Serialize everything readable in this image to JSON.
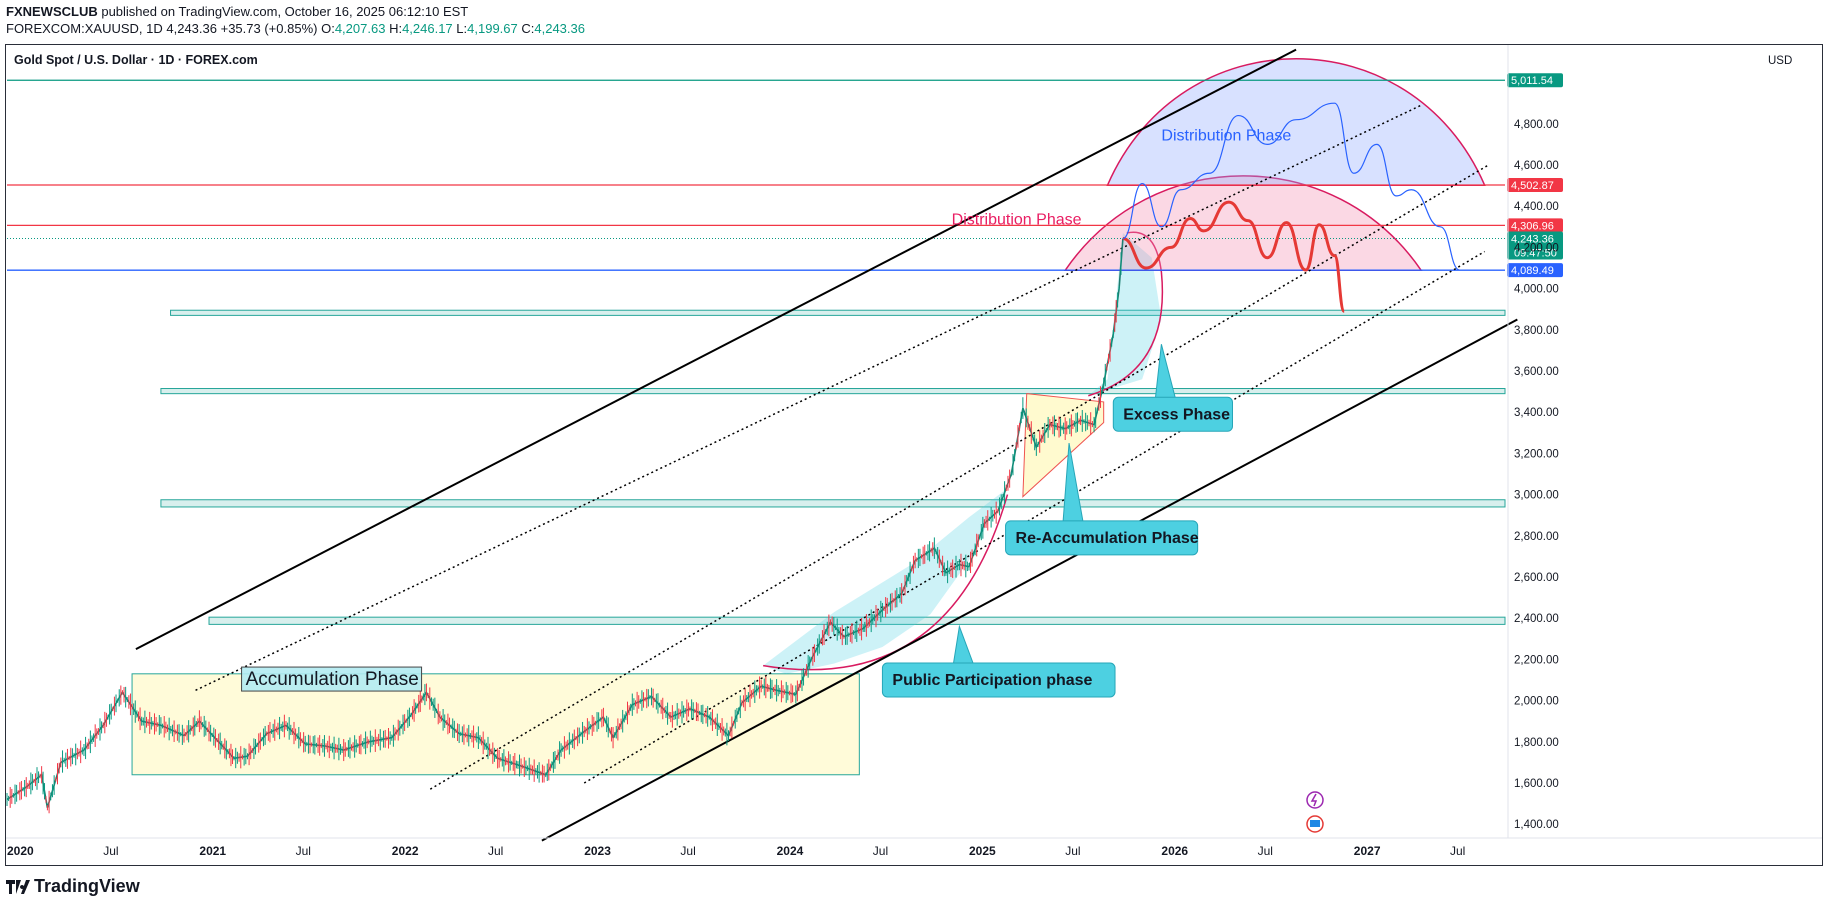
{
  "header": {
    "publisher": "FXNEWSCLUB",
    "published_text": "published on TradingView.com, October 16, 2025 06:12:10 EST",
    "symbol_line_prefix": "FOREXCOM:XAUUSD, 1D",
    "last": "4,243.36",
    "change": "+35.73 (+0.85%)",
    "open_label": "O:",
    "open": "4,207.63",
    "high_label": "H:",
    "high": "4,246.17",
    "low_label": "L:",
    "low": "4,199.67",
    "close_label": "C:",
    "close": "4,243.36"
  },
  "chart_title": "Gold Spot / U.S. Dollar · 1D · FOREX.com",
  "currency_label": "USD",
  "footer_brand": "TradingView",
  "colors": {
    "up": "#089981",
    "red_line": "#f23645",
    "blue_line": "#2962ff",
    "cyan_box": "#4dd0e1",
    "zone_green": "#26a69a"
  },
  "chart_data": {
    "type": "line",
    "title": "Gold Spot / U.S. Dollar · 1D · FOREX.com",
    "ylabel": "USD",
    "ylim": [
      1200,
      5200
    ],
    "xlim": [
      2020.0,
      2027.85
    ],
    "y_ticks": [
      1400,
      1600,
      1800,
      2000,
      2200,
      2400,
      2600,
      2800,
      3000,
      3200,
      3400,
      3600,
      3800,
      4000,
      4200,
      4400,
      4600,
      4800
    ],
    "y_tick_labels": [
      "1,400.00",
      "1,600.00",
      "1,800.00",
      "2,000.00",
      "2,200.00",
      "2,400.00",
      "2,600.00",
      "2,800.00",
      "3,000.00",
      "3,200.00",
      "3,400.00",
      "3,600.00",
      "3,800.00",
      "4,000.00",
      "4,200.00",
      "4,400.00",
      "4,600.00",
      "4,800.00"
    ],
    "x_ticks": [
      {
        "t": 2020.0,
        "label": "2020",
        "bold": true
      },
      {
        "t": 2020.5,
        "label": "Jul",
        "bold": false
      },
      {
        "t": 2021.0,
        "label": "2021",
        "bold": true
      },
      {
        "t": 2021.5,
        "label": "Jul",
        "bold": false
      },
      {
        "t": 2022.0,
        "label": "2022",
        "bold": true
      },
      {
        "t": 2022.5,
        "label": "Jul",
        "bold": false
      },
      {
        "t": 2023.0,
        "label": "2023",
        "bold": true
      },
      {
        "t": 2023.5,
        "label": "Jul",
        "bold": false
      },
      {
        "t": 2024.0,
        "label": "2024",
        "bold": true
      },
      {
        "t": 2024.5,
        "label": "Jul",
        "bold": false
      },
      {
        "t": 2025.0,
        "label": "2025",
        "bold": true
      },
      {
        "t": 2025.5,
        "label": "Jul",
        "bold": false
      },
      {
        "t": 2026.0,
        "label": "2026",
        "bold": true
      },
      {
        "t": 2026.5,
        "label": "Jul",
        "bold": false
      },
      {
        "t": 2027.0,
        "label": "2027",
        "bold": true
      },
      {
        "t": 2027.5,
        "label": "Jul",
        "bold": false
      }
    ],
    "price_series": {
      "name": "XAUUSD",
      "points": [
        [
          2020.0,
          1520
        ],
        [
          2020.1,
          1580
        ],
        [
          2020.18,
          1640
        ],
        [
          2020.21,
          1480
        ],
        [
          2020.28,
          1700
        ],
        [
          2020.4,
          1760
        ],
        [
          2020.5,
          1880
        ],
        [
          2020.6,
          2040
        ],
        [
          2020.7,
          1900
        ],
        [
          2020.8,
          1880
        ],
        [
          2020.92,
          1830
        ],
        [
          2021.0,
          1900
        ],
        [
          2021.1,
          1800
        ],
        [
          2021.18,
          1720
        ],
        [
          2021.25,
          1730
        ],
        [
          2021.35,
          1840
        ],
        [
          2021.45,
          1880
        ],
        [
          2021.55,
          1790
        ],
        [
          2021.65,
          1780
        ],
        [
          2021.75,
          1760
        ],
        [
          2021.88,
          1800
        ],
        [
          2022.0,
          1820
        ],
        [
          2022.1,
          1930
        ],
        [
          2022.18,
          2040
        ],
        [
          2022.25,
          1920
        ],
        [
          2022.35,
          1840
        ],
        [
          2022.45,
          1820
        ],
        [
          2022.55,
          1720
        ],
        [
          2022.68,
          1680
        ],
        [
          2022.8,
          1640
        ],
        [
          2022.88,
          1760
        ],
        [
          2023.0,
          1850
        ],
        [
          2023.1,
          1920
        ],
        [
          2023.15,
          1820
        ],
        [
          2023.25,
          1980
        ],
        [
          2023.35,
          2020
        ],
        [
          2023.45,
          1920
        ],
        [
          2023.55,
          1960
        ],
        [
          2023.65,
          1920
        ],
        [
          2023.75,
          1830
        ],
        [
          2023.82,
          1990
        ],
        [
          2023.92,
          2070
        ],
        [
          2024.0,
          2050
        ],
        [
          2024.1,
          2030
        ],
        [
          2024.18,
          2200
        ],
        [
          2024.28,
          2380
        ],
        [
          2024.35,
          2310
        ],
        [
          2024.45,
          2350
        ],
        [
          2024.55,
          2440
        ],
        [
          2024.65,
          2520
        ],
        [
          2024.72,
          2680
        ],
        [
          2024.82,
          2740
        ],
        [
          2024.88,
          2620
        ],
        [
          2024.95,
          2660
        ],
        [
          2025.0,
          2650
        ],
        [
          2025.08,
          2860
        ],
        [
          2025.15,
          2920
        ],
        [
          2025.22,
          3100
        ],
        [
          2025.28,
          3420
        ],
        [
          2025.35,
          3230
        ],
        [
          2025.42,
          3340
        ],
        [
          2025.5,
          3320
        ],
        [
          2025.58,
          3360
        ],
        [
          2025.65,
          3340
        ],
        [
          2025.7,
          3540
        ],
        [
          2025.75,
          3780
        ],
        [
          2025.78,
          4000
        ],
        [
          2025.8,
          4243
        ]
      ]
    },
    "projections": [
      {
        "name": "projection-red",
        "points": [
          [
            2025.8,
            4243
          ],
          [
            2025.92,
            4100
          ],
          [
            2026.05,
            4200
          ],
          [
            2026.15,
            4340
          ],
          [
            2026.22,
            4280
          ],
          [
            2026.35,
            4420
          ],
          [
            2026.45,
            4330
          ],
          [
            2026.55,
            4150
          ],
          [
            2026.65,
            4320
          ],
          [
            2026.75,
            4090
          ],
          [
            2026.82,
            4310
          ],
          [
            2026.9,
            4160
          ],
          [
            2026.95,
            3890
          ]
        ]
      },
      {
        "name": "projection-blue",
        "points": [
          [
            2025.8,
            4243
          ],
          [
            2025.9,
            4510
          ],
          [
            2026.0,
            4300
          ],
          [
            2026.1,
            4480
          ],
          [
            2026.25,
            4560
          ],
          [
            2026.4,
            4840
          ],
          [
            2026.55,
            4700
          ],
          [
            2026.7,
            4820
          ],
          [
            2026.9,
            4900
          ],
          [
            2027.0,
            4560
          ],
          [
            2027.12,
            4700
          ],
          [
            2027.22,
            4450
          ],
          [
            2027.3,
            4480
          ],
          [
            2027.45,
            4300
          ],
          [
            2027.55,
            4090
          ]
        ]
      }
    ],
    "horizontal_levels": [
      {
        "name": "level-5011",
        "value": 5011.54,
        "label": "5,011.54",
        "color": "#089981"
      },
      {
        "name": "level-4502",
        "value": 4502.87,
        "label": "4,502.87",
        "color": "#f23645"
      },
      {
        "name": "level-4306",
        "value": 4306.96,
        "label": "4,306.96",
        "color": "#f23645"
      },
      {
        "name": "level-4089",
        "value": 4089.49,
        "label": "4,089.49",
        "color": "#2962ff"
      }
    ],
    "last_price_badge": {
      "value": 4243.36,
      "label": "4,243.36",
      "countdown": "09:47:50"
    },
    "support_zones": [
      {
        "from": 2020.85,
        "to": 2027.85,
        "low": 3870,
        "high": 3895
      },
      {
        "from": 2020.8,
        "to": 2027.85,
        "low": 3490,
        "high": 3515
      },
      {
        "from": 2020.8,
        "to": 2027.85,
        "low": 2940,
        "high": 2975
      },
      {
        "from": 2021.05,
        "to": 2027.85,
        "low": 2370,
        "high": 2405
      }
    ],
    "channel_lines": [
      {
        "name": "upper-channel-line",
        "style": "solid",
        "points": [
          [
            2020.67,
            2250
          ],
          [
            2026.7,
            5160
          ]
        ]
      },
      {
        "name": "lower-channel-line",
        "style": "solid",
        "points": [
          [
            2022.78,
            1320
          ],
          [
            2027.85,
            3850
          ]
        ]
      },
      {
        "name": "dotted-line-1",
        "style": "dotted",
        "points": [
          [
            2020.98,
            2050
          ],
          [
            2027.35,
            4890
          ]
        ]
      },
      {
        "name": "dotted-line-2",
        "style": "dotted",
        "points": [
          [
            2022.2,
            1570
          ],
          [
            2027.7,
            4600
          ]
        ]
      },
      {
        "name": "dotted-line-3",
        "style": "dotted",
        "points": [
          [
            2023.0,
            1600
          ],
          [
            2027.68,
            4180
          ]
        ]
      }
    ],
    "accumulation_box": {
      "from": 2020.65,
      "to": 2024.43,
      "low": 1640,
      "high": 2130
    },
    "reaccumulation_triangle": [
      [
        2025.3,
        3490
      ],
      [
        2025.7,
        3450
      ],
      [
        2025.7,
        3350
      ],
      [
        2025.28,
        2990
      ]
    ],
    "arcs": [
      {
        "name": "public-participation-arc",
        "from": 2023.93,
        "to": 2025.15,
        "base": 2170,
        "dip": 2130,
        "type": "bowl"
      },
      {
        "name": "excess-arc",
        "from": 2025.62,
        "to": 2026.0,
        "type": "bowl"
      },
      {
        "name": "distribution-arc-red",
        "from": 2025.5,
        "to": 2027.35,
        "base": 4089,
        "peak": 4500
      },
      {
        "name": "distribution-arc-blue",
        "from": 2025.72,
        "to": 2027.68,
        "base": 4502,
        "peak": 5030
      }
    ],
    "annotations": [
      {
        "name": "accumulation-label",
        "text": "Accumulation Phase",
        "t": 2021.24,
        "y": 2090,
        "style": "plain-box"
      },
      {
        "name": "public-participation-label",
        "text": "Public Participation phase",
        "t": 2024.55,
        "y": 2100,
        "style": "callout",
        "pointer": [
          2024.95,
          2360
        ]
      },
      {
        "name": "re-accumulation-label",
        "text": "Re-Accumulation Phase",
        "t": 2025.19,
        "y": 2790,
        "style": "callout",
        "pointer": [
          2025.52,
          3250
        ]
      },
      {
        "name": "excess-label",
        "text": "Excess Phase",
        "t": 2025.75,
        "y": 3390,
        "style": "callout",
        "pointer": [
          2026.0,
          3730
        ]
      },
      {
        "name": "distribution-red-label",
        "text": "Distribution Phase",
        "t": 2024.91,
        "y": 4310,
        "style": "text-red"
      },
      {
        "name": "distribution-blue-label",
        "text": "Distribution Phase",
        "t": 2026.0,
        "y": 4720,
        "style": "text-blue"
      }
    ]
  }
}
